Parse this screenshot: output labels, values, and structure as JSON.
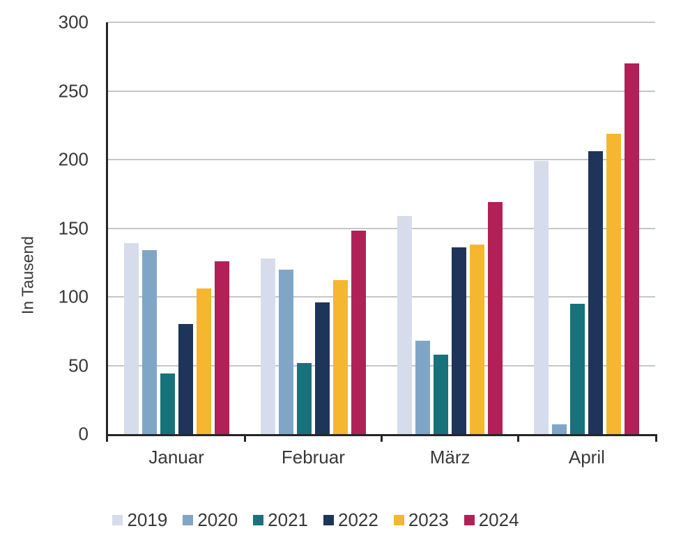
{
  "chart_data": {
    "type": "bar",
    "title": "",
    "ylabel": "In Tausend",
    "xlabel": "",
    "ylim": [
      0,
      300
    ],
    "yticks": [
      0,
      50,
      100,
      150,
      200,
      250,
      300
    ],
    "grid": true,
    "legend_position": "bottom",
    "categories": [
      "Januar",
      "Februar",
      "März",
      "April"
    ],
    "series": [
      {
        "name": "2019",
        "color": "#D6DCEC",
        "values": [
          139,
          128,
          159,
          199
        ]
      },
      {
        "name": "2020",
        "color": "#7FA6C7",
        "values": [
          134,
          120,
          68,
          7
        ]
      },
      {
        "name": "2021",
        "color": "#17727B",
        "values": [
          44,
          52,
          58,
          95
        ]
      },
      {
        "name": "2022",
        "color": "#1F3459",
        "values": [
          80,
          96,
          136,
          206
        ]
      },
      {
        "name": "2023",
        "color": "#F4B72F",
        "values": [
          106,
          112,
          138,
          219
        ]
      },
      {
        "name": "2024",
        "color": "#B12056",
        "values": [
          126,
          148,
          169,
          270
        ]
      }
    ],
    "colors": {
      "axis": "#262626",
      "grid": "#C6C6C6",
      "text": "#383838"
    }
  }
}
